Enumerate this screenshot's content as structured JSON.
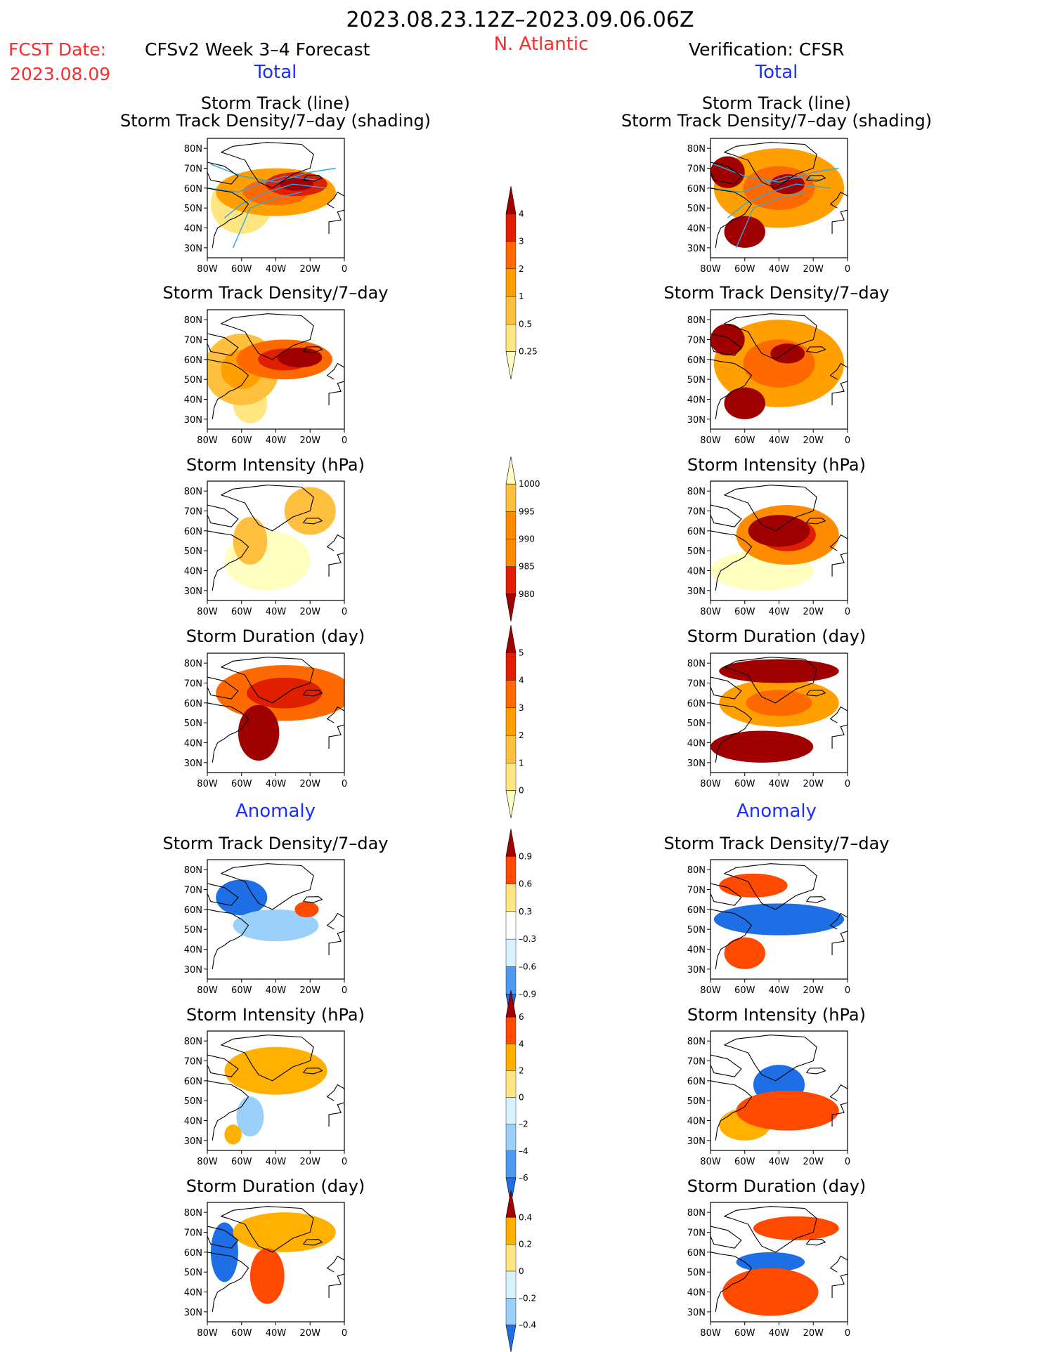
{
  "header": {
    "period": "2023.08.23.12Z–2023.09.06.06Z",
    "fcst_label": "FCST Date:",
    "fcst_date": "2023.08.09",
    "model_title": "CFSv2 Week 3–4 Forecast",
    "region": "N. Atlantic",
    "verification": "Verification: CFSR",
    "total_left": "Total",
    "total_right": "Total",
    "anomaly_left": "Anomaly",
    "anomaly_right": "Anomaly"
  },
  "panel_titles": {
    "track_line": "Storm Track (line)",
    "track_shading": "Storm Track Density/7–day (shading)",
    "density": "Storm Track Density/7–day",
    "intensity": "Storm Intensity (hPa)",
    "duration": "Storm Duration (day)"
  },
  "axes": {
    "lon_ticks": [
      "80W",
      "60W",
      "40W",
      "20W",
      "0"
    ],
    "lat_ticks": [
      "80N",
      "70N",
      "60N",
      "50N",
      "40N",
      "30N"
    ]
  },
  "colors": {
    "density": [
      "#ffffc0",
      "#ffe680",
      "#ffc040",
      "#ffa000",
      "#ff6a00",
      "#e01e00",
      "#a00000"
    ],
    "intensity": [
      "#ffffc0",
      "#ffc040",
      "#ff8c00",
      "#e01e00",
      "#a00000"
    ],
    "anomaly": [
      "#1e6ee6",
      "#4d9bf0",
      "#9ad0fa",
      "#d8f2ff",
      "#ffffff",
      "#ffe680",
      "#ffb000",
      "#ff4a00",
      "#a00000"
    ]
  },
  "colorbars": {
    "density": [
      "0.25",
      "0.5",
      "1",
      "2",
      "3",
      "4"
    ],
    "intensity": [
      "1000",
      "995",
      "990",
      "985",
      "980"
    ],
    "duration": [
      "0",
      "1",
      "2",
      "3",
      "4",
      "5"
    ],
    "density_anom": [
      "0.9",
      "0.6",
      "0.3",
      "–0.3",
      "–0.6",
      "–0.9"
    ],
    "intensity_anom": [
      "6",
      "4",
      "2",
      "0",
      "–2",
      "–4",
      "–6"
    ],
    "duration_anom": [
      "0.4",
      "0.2",
      "0",
      "–0.2",
      "–0.4"
    ]
  },
  "chart_data": [
    {
      "type": "heatmap",
      "panel": "forecast-total-track-line",
      "title": "Storm Track (line)",
      "subtitle": "Storm Track Density/7–day (shading)",
      "scale": "density",
      "lon_range": [
        -80,
        0
      ],
      "lat_range": [
        25,
        85
      ],
      "blobs": [
        {
          "lon": -28,
          "lat": 62,
          "rx": 18,
          "ry": 6,
          "level": 5
        },
        {
          "lon": -40,
          "lat": 58,
          "rx": 35,
          "ry": 12,
          "level": 3
        },
        {
          "lon": -60,
          "lat": 52,
          "rx": 18,
          "ry": 15,
          "level": 1
        }
      ]
    },
    {
      "type": "heatmap",
      "panel": "forecast-total-density",
      "title": "Storm Track Density/7–day",
      "scale": "density",
      "lon_range": [
        -80,
        0
      ],
      "lat_range": [
        25,
        85
      ],
      "blobs": [
        {
          "lon": -26,
          "lat": 61,
          "rx": 13,
          "ry": 5,
          "level": 6
        },
        {
          "lon": -35,
          "lat": 60,
          "rx": 28,
          "ry": 10,
          "level": 4
        },
        {
          "lon": -60,
          "lat": 55,
          "rx": 22,
          "ry": 18,
          "level": 2
        },
        {
          "lon": -55,
          "lat": 38,
          "rx": 10,
          "ry": 10,
          "level": 1
        }
      ]
    },
    {
      "type": "heatmap",
      "panel": "forecast-total-intensity",
      "title": "Storm Intensity (hPa)",
      "scale": "intensity",
      "lon_range": [
        -80,
        0
      ],
      "lat_range": [
        25,
        85
      ],
      "blobs": [
        {
          "lon": -20,
          "lat": 70,
          "rx": 15,
          "ry": 12,
          "level": 1
        },
        {
          "lon": -55,
          "lat": 55,
          "rx": 10,
          "ry": 12,
          "level": 1
        },
        {
          "lon": -45,
          "lat": 45,
          "rx": 25,
          "ry": 15,
          "level": 0
        }
      ]
    },
    {
      "type": "heatmap",
      "panel": "forecast-total-duration",
      "title": "Storm Duration (day)",
      "scale": "density",
      "lon_range": [
        -80,
        0
      ],
      "lat_range": [
        25,
        85
      ],
      "blobs": [
        {
          "lon": -35,
          "lat": 65,
          "rx": 40,
          "ry": 14,
          "level": 4
        },
        {
          "lon": -50,
          "lat": 45,
          "rx": 12,
          "ry": 14,
          "level": 6
        }
      ]
    },
    {
      "type": "heatmap",
      "panel": "verification-total-track-line",
      "title": "Storm Track (line)",
      "subtitle": "Storm Track Density/7–day (shading)",
      "scale": "density",
      "lon_range": [
        -80,
        0
      ],
      "lat_range": [
        25,
        85
      ],
      "blobs": [
        {
          "lon": -70,
          "lat": 68,
          "rx": 10,
          "ry": 8,
          "level": 6
        },
        {
          "lon": -35,
          "lat": 62,
          "rx": 10,
          "ry": 5,
          "level": 6
        },
        {
          "lon": -60,
          "lat": 38,
          "rx": 12,
          "ry": 8,
          "level": 6
        },
        {
          "lon": -40,
          "lat": 60,
          "rx": 38,
          "ry": 20,
          "level": 3
        }
      ]
    },
    {
      "type": "heatmap",
      "panel": "verification-total-density",
      "title": "Storm Track Density/7–day",
      "scale": "density",
      "lon_range": [
        -80,
        0
      ],
      "lat_range": [
        25,
        85
      ],
      "blobs": [
        {
          "lon": -70,
          "lat": 70,
          "rx": 10,
          "ry": 8,
          "level": 6
        },
        {
          "lon": -35,
          "lat": 63,
          "rx": 10,
          "ry": 5,
          "level": 6
        },
        {
          "lon": -60,
          "lat": 38,
          "rx": 12,
          "ry": 8,
          "level": 6
        },
        {
          "lon": -40,
          "lat": 58,
          "rx": 38,
          "ry": 22,
          "level": 3
        }
      ]
    },
    {
      "type": "heatmap",
      "panel": "verification-total-intensity",
      "title": "Storm Intensity (hPa)",
      "scale": "intensity",
      "lon_range": [
        -80,
        0
      ],
      "lat_range": [
        25,
        85
      ],
      "blobs": [
        {
          "lon": -40,
          "lat": 60,
          "rx": 18,
          "ry": 8,
          "level": 4
        },
        {
          "lon": -35,
          "lat": 58,
          "rx": 30,
          "ry": 15,
          "level": 2
        },
        {
          "lon": -50,
          "lat": 40,
          "rx": 30,
          "ry": 10,
          "level": 0
        }
      ]
    },
    {
      "type": "heatmap",
      "panel": "verification-total-duration",
      "title": "Storm Duration (day)",
      "scale": "density",
      "lon_range": [
        -80,
        0
      ],
      "lat_range": [
        25,
        85
      ],
      "blobs": [
        {
          "lon": -50,
          "lat": 38,
          "rx": 30,
          "ry": 8,
          "level": 6
        },
        {
          "lon": -40,
          "lat": 76,
          "rx": 35,
          "ry": 6,
          "level": 6
        },
        {
          "lon": -40,
          "lat": 60,
          "rx": 35,
          "ry": 12,
          "level": 3
        }
      ]
    },
    {
      "type": "heatmap",
      "panel": "forecast-anomaly-density",
      "title": "Storm Track Density/7–day",
      "scale": "anomaly",
      "lon_range": [
        -80,
        0
      ],
      "lat_range": [
        25,
        85
      ],
      "blobs": [
        {
          "lon": -60,
          "lat": 66,
          "rx": 15,
          "ry": 9,
          "level": 0
        },
        {
          "lon": -40,
          "lat": 52,
          "rx": 25,
          "ry": 8,
          "level": 2
        },
        {
          "lon": -22,
          "lat": 60,
          "rx": 7,
          "ry": 4,
          "level": 7
        }
      ]
    },
    {
      "type": "heatmap",
      "panel": "forecast-anomaly-intensity",
      "title": "Storm Intensity (hPa)",
      "scale": "anomaly",
      "lon_range": [
        -80,
        0
      ],
      "lat_range": [
        25,
        85
      ],
      "blobs": [
        {
          "lon": -40,
          "lat": 65,
          "rx": 30,
          "ry": 12,
          "level": 6
        },
        {
          "lon": -55,
          "lat": 42,
          "rx": 8,
          "ry": 10,
          "level": 2
        },
        {
          "lon": -65,
          "lat": 33,
          "rx": 5,
          "ry": 5,
          "level": 6
        }
      ]
    },
    {
      "type": "heatmap",
      "panel": "forecast-anomaly-duration",
      "title": "Storm Duration (day)",
      "scale": "anomaly",
      "lon_range": [
        -80,
        0
      ],
      "lat_range": [
        25,
        85
      ],
      "blobs": [
        {
          "lon": -45,
          "lat": 48,
          "rx": 10,
          "ry": 14,
          "level": 7
        },
        {
          "lon": -70,
          "lat": 60,
          "rx": 8,
          "ry": 15,
          "level": 0
        },
        {
          "lon": -35,
          "lat": 70,
          "rx": 30,
          "ry": 10,
          "level": 6
        }
      ]
    },
    {
      "type": "heatmap",
      "panel": "verification-anomaly-density",
      "title": "Storm Track Density/7–day",
      "scale": "anomaly",
      "lon_range": [
        -80,
        0
      ],
      "lat_range": [
        25,
        85
      ],
      "blobs": [
        {
          "lon": -40,
          "lat": 55,
          "rx": 38,
          "ry": 8,
          "level": 0
        },
        {
          "lon": -60,
          "lat": 38,
          "rx": 12,
          "ry": 8,
          "level": 7
        },
        {
          "lon": -55,
          "lat": 72,
          "rx": 20,
          "ry": 6,
          "level": 7
        }
      ]
    },
    {
      "type": "heatmap",
      "panel": "verification-anomaly-intensity",
      "title": "Storm Intensity (hPa)",
      "scale": "anomaly",
      "lon_range": [
        -80,
        0
      ],
      "lat_range": [
        25,
        85
      ],
      "blobs": [
        {
          "lon": -40,
          "lat": 58,
          "rx": 15,
          "ry": 10,
          "level": 0
        },
        {
          "lon": -35,
          "lat": 45,
          "rx": 30,
          "ry": 10,
          "level": 7
        },
        {
          "lon": -60,
          "lat": 38,
          "rx": 15,
          "ry": 8,
          "level": 6
        }
      ]
    },
    {
      "type": "heatmap",
      "panel": "verification-anomaly-duration",
      "title": "Storm Duration (day)",
      "scale": "anomaly",
      "lon_range": [
        -80,
        0
      ],
      "lat_range": [
        25,
        85
      ],
      "blobs": [
        {
          "lon": -45,
          "lat": 40,
          "rx": 28,
          "ry": 12,
          "level": 7
        },
        {
          "lon": -45,
          "lat": 55,
          "rx": 20,
          "ry": 5,
          "level": 0
        },
        {
          "lon": -30,
          "lat": 72,
          "rx": 25,
          "ry": 6,
          "level": 7
        }
      ]
    }
  ]
}
